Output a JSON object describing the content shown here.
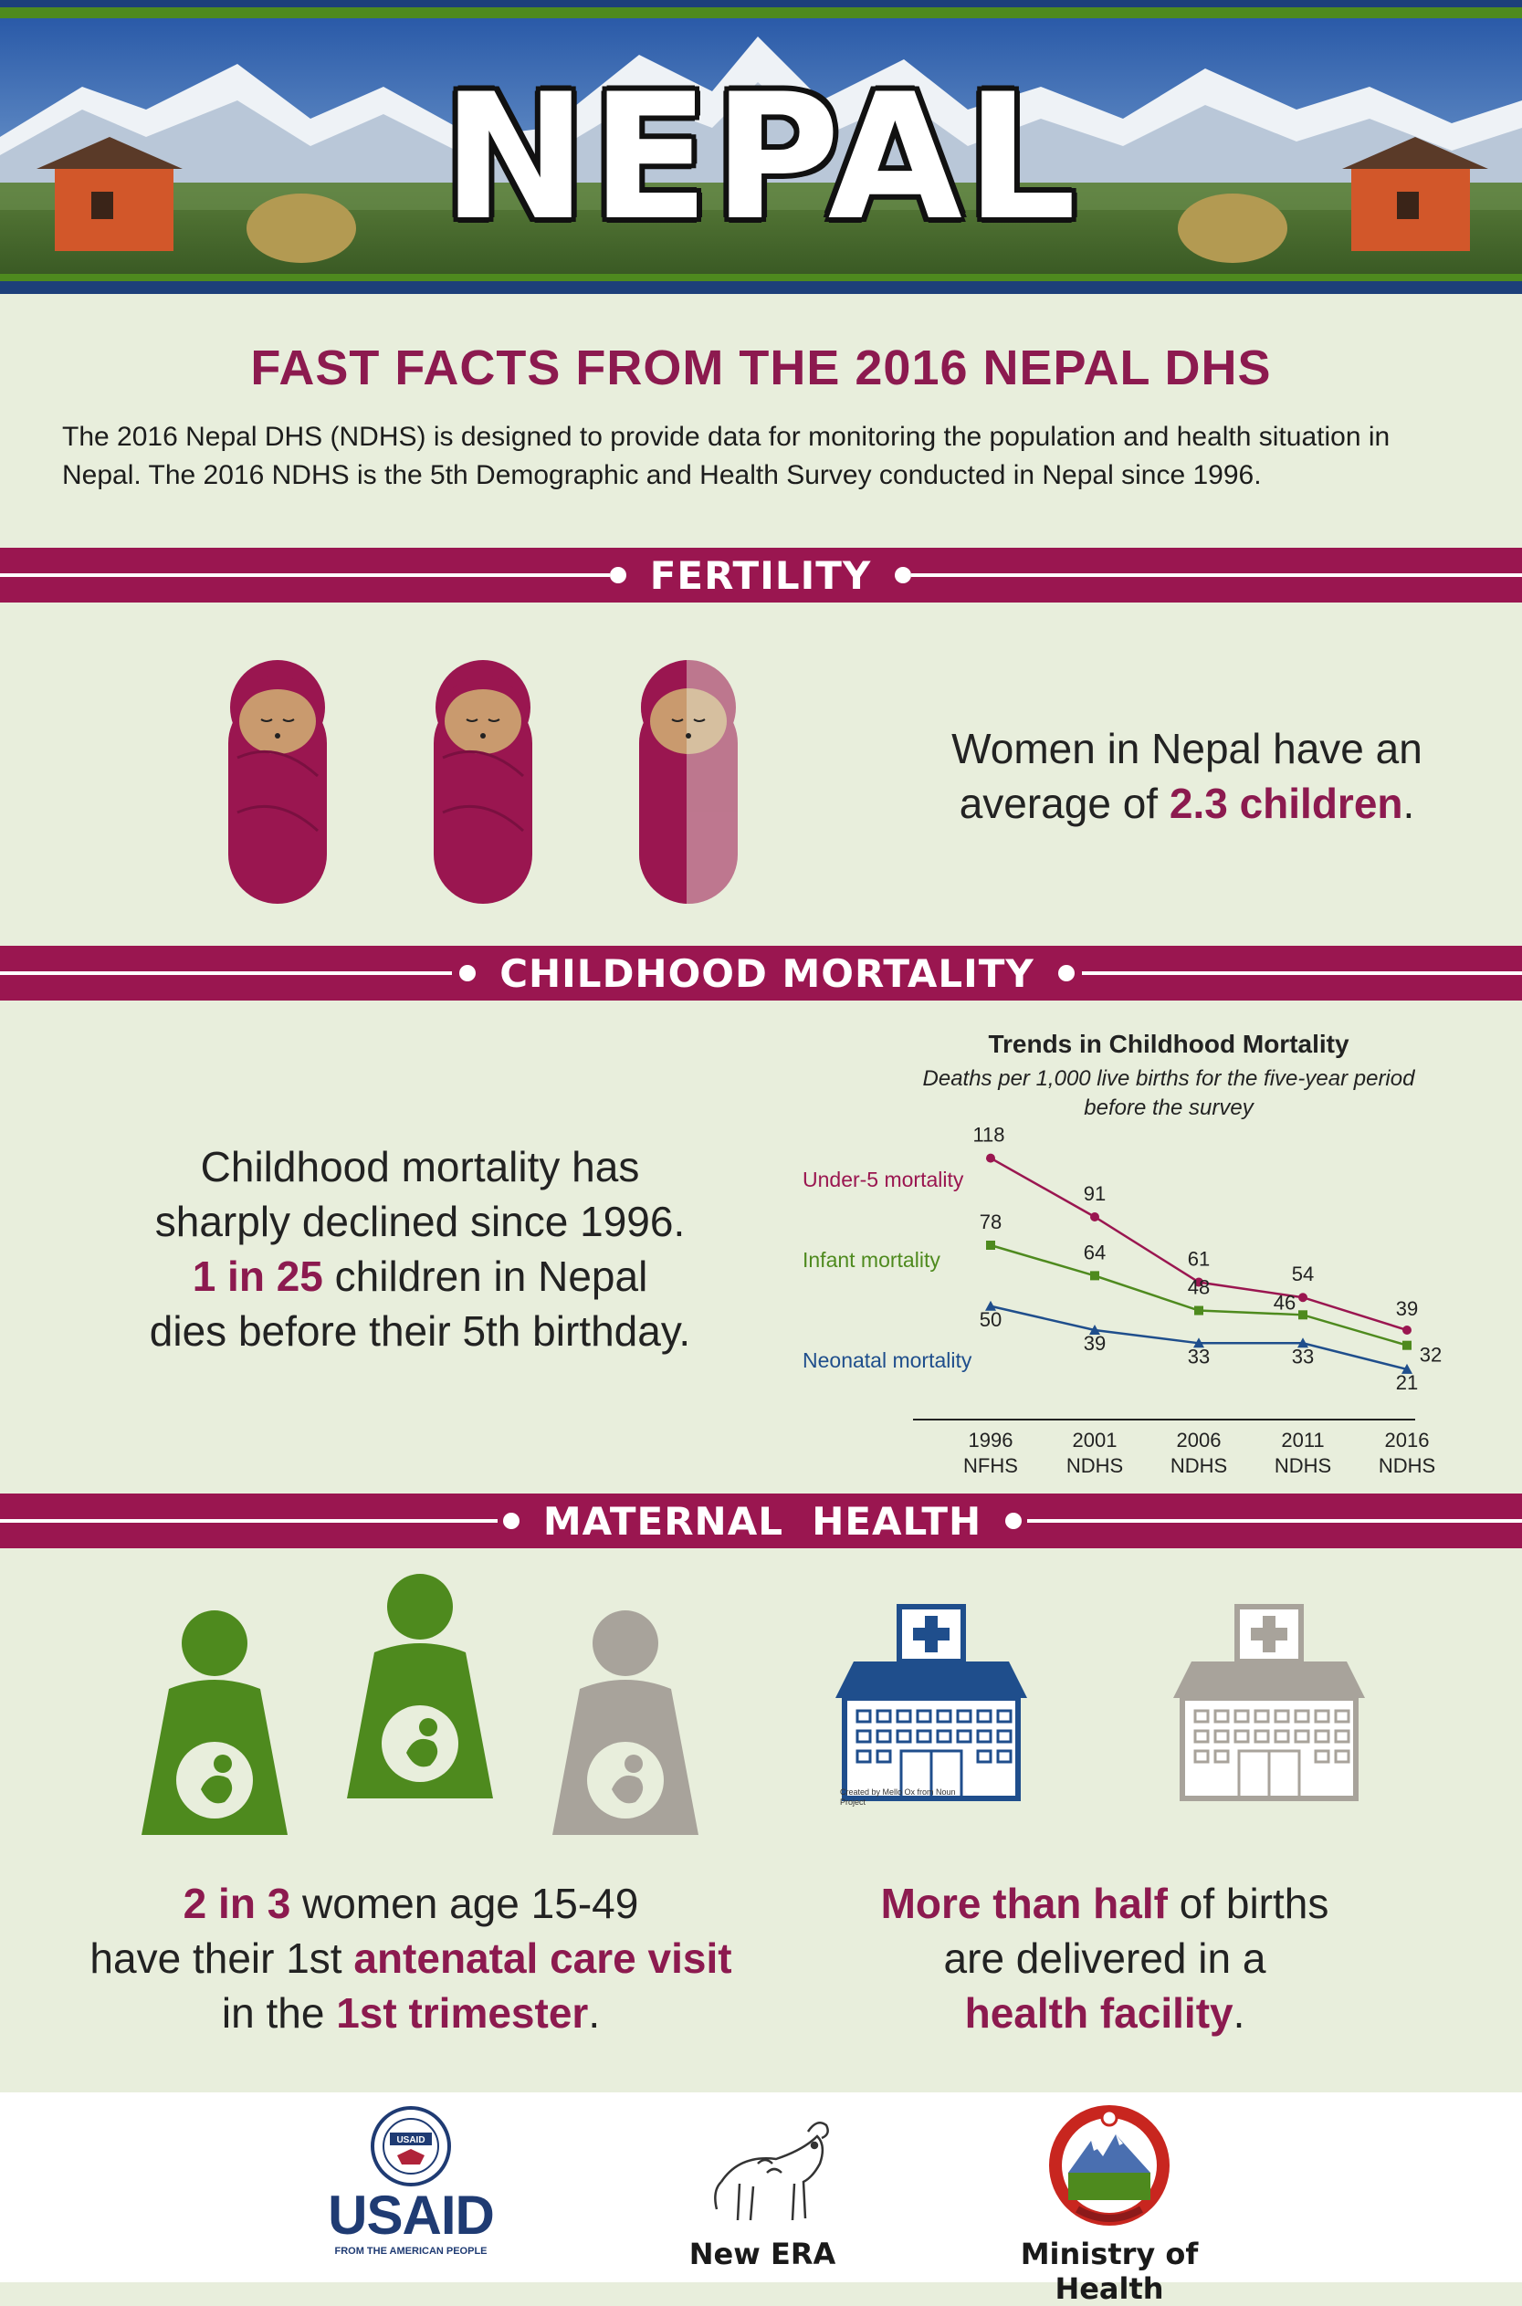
{
  "banner": {
    "title": "NEPAL"
  },
  "heading": "FAST FACTS FROM THE 2016 NEPAL DHS",
  "intro": "The 2016 Nepal DHS (NDHS) is designed to provide data for monitoring the population and health situation in Nepal. The 2016 NDHS is the 5th Demographic and Health Survey conducted in Nepal since 1996.",
  "sections": {
    "fertility": "FERTILITY",
    "mortality": "CHILDHOOD MORTALITY",
    "maternal": "MATERNAL  HEALTH"
  },
  "fertility": {
    "text_pre": "Women in Nepal have an average of ",
    "highlight": "2.3 children",
    "text_post": ".",
    "value": 2.3
  },
  "mortality": {
    "line1": "Childhood mortality has",
    "line2": "sharply declined since 1996.",
    "highlight": "1 in 25",
    "line3_post": " children in Nepal",
    "line4": "dies before their 5th birthday."
  },
  "chart_data": {
    "type": "line",
    "title": "Trends in Childhood Mortality",
    "subtitle": "Deaths per 1,000 live births for the five-year period before the survey",
    "categories": [
      [
        "1996",
        "NFHS"
      ],
      [
        "2001",
        "NDHS"
      ],
      [
        "2006",
        "NDHS"
      ],
      [
        "2011",
        "NDHS"
      ],
      [
        "2016",
        "NDHS"
      ]
    ],
    "ylim": [
      0,
      130
    ],
    "series": [
      {
        "name": "Under-5 mortality",
        "values": [
          118,
          91,
          61,
          54,
          39
        ],
        "color": "#9a1650",
        "marker": "circle"
      },
      {
        "name": "Infant mortality",
        "values": [
          78,
          64,
          48,
          46,
          32
        ],
        "color": "#4e8a1e",
        "marker": "square"
      },
      {
        "name": "Neonatal mortality",
        "values": [
          50,
          39,
          33,
          33,
          21
        ],
        "color": "#1f4e8c",
        "marker": "triangle"
      }
    ]
  },
  "maternal": {
    "anc": {
      "hl1": "2 in 3",
      "t1": " women age 15-49",
      "t2": "have their 1st ",
      "hl2": "antenatal care visit",
      "t3": "in the ",
      "hl3": "1st trimester",
      "t4": "."
    },
    "facility": {
      "hl1": "More than half",
      "t1": " of births",
      "t2": "are delivered in a",
      "hl2": "health facility",
      "t3": "."
    },
    "icon_credit": "Created by Mello Ox from Noun Project"
  },
  "footer": {
    "usaid": "USAID",
    "usaid_tagline": "FROM THE AMERICAN PEOPLE",
    "usaid_seal": "USAID",
    "new_era": "New ERA",
    "ministry": "Ministry of Health"
  },
  "colors": {
    "accent": "#9a1650",
    "green": "#4e8a1e",
    "blue": "#1f4e8c",
    "gray": "#a8a39b",
    "background": "#e8eedc"
  }
}
